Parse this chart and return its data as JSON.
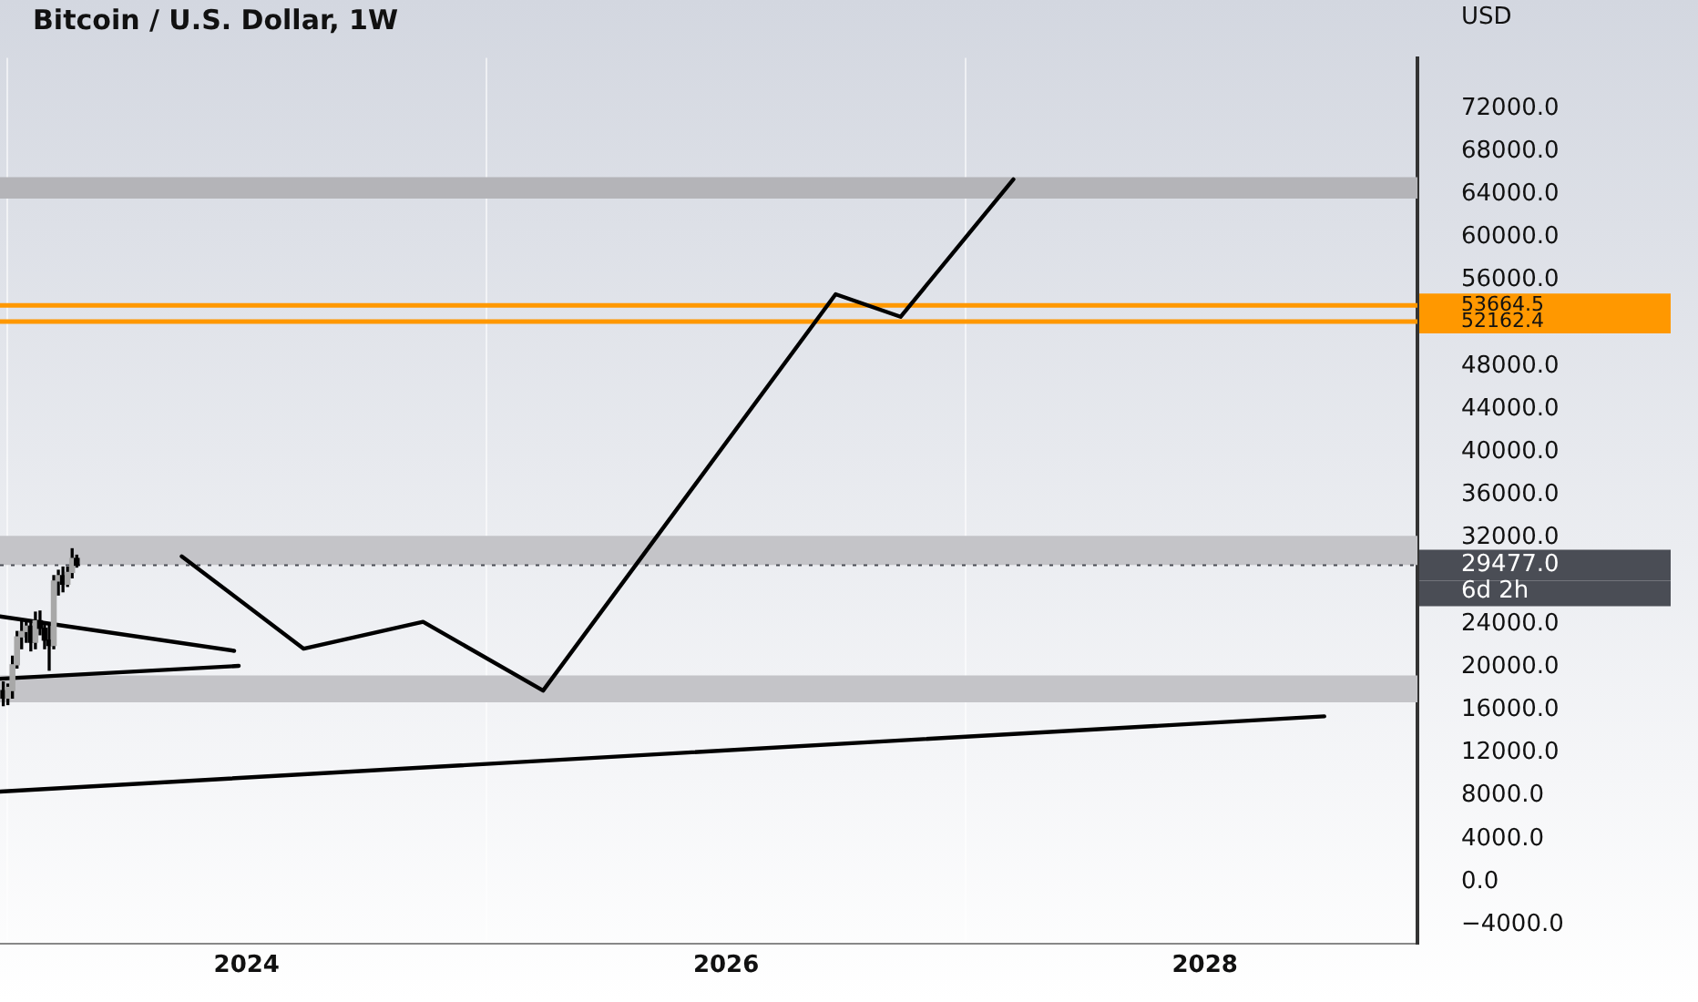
{
  "chart_data": {
    "type": "candlestick",
    "title": "Bitcoin / U.S. Dollar, 1W",
    "ylabel": "USD",
    "xlim": [
      "2022-12-21",
      "2028-11-20"
    ],
    "xticks": [
      {
        "value": "2024-01-01",
        "label": "2024"
      },
      {
        "value": "2026-01-01",
        "label": "2026"
      },
      {
        "value": "2028-01-01",
        "label": "2028"
      }
    ],
    "ylim": [
      -5800,
      76700
    ],
    "yticks": [
      {
        "value": 72000,
        "label": "72000.0"
      },
      {
        "value": 68000,
        "label": "68000.0"
      },
      {
        "value": 64000,
        "label": "64000.0"
      },
      {
        "value": 60000,
        "label": "60000.0"
      },
      {
        "value": 56000,
        "label": "56000.0"
      },
      {
        "value": 48000,
        "label": "48000.0"
      },
      {
        "value": 44000,
        "label": "44000.0"
      },
      {
        "value": 40000,
        "label": "40000.0"
      },
      {
        "value": 36000,
        "label": "36000.0"
      },
      {
        "value": 32000,
        "label": "32000.0"
      },
      {
        "value": 24000,
        "label": "24000.0"
      },
      {
        "value": 20000,
        "label": "20000.0"
      },
      {
        "value": 16000,
        "label": "16000.0"
      },
      {
        "value": 12000,
        "label": "12000.0"
      },
      {
        "value": 8000,
        "label": "8000.0"
      },
      {
        "value": 4000,
        "label": "4000.0"
      },
      {
        "value": 0,
        "label": "0.0"
      },
      {
        "value": -4000,
        "label": "−4000.0"
      }
    ],
    "grid": "x",
    "legend": false,
    "series": [
      {
        "type": "line",
        "color": "#000000",
        "x": [
          "2022-12-21",
          "2028-07-01"
        ],
        "values": [
          8400,
          15400
        ]
      },
      {
        "type": "line",
        "color": "#000000",
        "x": [
          "2022-12-21",
          "2023-12-13"
        ],
        "values": [
          24700,
          21500
        ]
      },
      {
        "type": "line",
        "color": "#000000",
        "x": [
          "2022-12-21",
          "2023-12-20"
        ],
        "values": [
          18900,
          20100
        ]
      },
      {
        "type": "line",
        "color": "#000000",
        "x": [
          "2023-09-24",
          "2024-03-28",
          "2024-09-26",
          "2025-03-28",
          "2026-06-17",
          "2026-09-24",
          "2027-03-15"
        ],
        "values": [
          30300,
          21700,
          24200,
          17800,
          54700,
          52600,
          65400
        ]
      },
      {
        "type": "candlestick",
        "color": "#000000",
        "colors": [
          "#000000",
          "#a8a8a8",
          "#a8a8a8",
          "#a8a8a8",
          "#a8a8a8",
          "#a8a8a8",
          "#000000",
          "#a8a8a8",
          "#000000",
          "#000000",
          "#000000",
          "#a8a8a8",
          "#a8a8a8",
          "#000000",
          "#a8a8a8",
          "#a8a8a8",
          "#000000"
        ],
        "x": [
          "2022-12-26",
          "2023-01-02",
          "2023-01-09",
          "2023-01-16",
          "2023-01-23",
          "2023-01-30",
          "2023-02-06",
          "2023-02-13",
          "2023-02-20",
          "2023-02-27",
          "2023-03-06",
          "2023-03-13",
          "2023-03-20",
          "2023-03-27",
          "2023-04-03",
          "2023-04-10",
          "2023-04-17"
        ],
        "ohlc": [
          [
            17800,
            18600,
            16400,
            17100
          ],
          [
            17100,
            18400,
            16500,
            18100
          ],
          [
            17800,
            21000,
            17100,
            20200
          ],
          [
            20200,
            23300,
            19900,
            22800
          ],
          [
            22800,
            24300,
            21700,
            23300
          ],
          [
            23300,
            24300,
            22300,
            23800
          ],
          [
            23800,
            24100,
            21500,
            22300
          ],
          [
            22300,
            25100,
            21700,
            24300
          ],
          [
            24300,
            25200,
            23000,
            23600
          ],
          [
            23600,
            24100,
            21700,
            22500
          ],
          [
            22500,
            24100,
            19700,
            22000
          ],
          [
            22000,
            28500,
            21700,
            28000
          ],
          [
            28000,
            29000,
            26700,
            28500
          ],
          [
            28500,
            29300,
            27000,
            27700
          ],
          [
            27700,
            29300,
            27500,
            28800
          ],
          [
            28800,
            31000,
            28300,
            30100
          ],
          [
            30100,
            30400,
            29300,
            29477
          ]
        ]
      }
    ],
    "bands": [
      {
        "axis": "y",
        "from": 63600,
        "to": 65600,
        "color": "#b4b4b8"
      },
      {
        "axis": "y",
        "from": 29500,
        "to": 32200,
        "color": "#c4c4c8"
      },
      {
        "axis": "y",
        "from": 16700,
        "to": 19200,
        "color": "#c4c4c8"
      }
    ],
    "ref_lines": [
      {
        "axis": "y",
        "value": 53664.5,
        "label": "53664.5",
        "color": "#ff9800"
      },
      {
        "axis": "y",
        "value": 52162.4,
        "label": "52162.4",
        "color": "#ff9800"
      },
      {
        "axis": "y",
        "value": 29477,
        "label": "29477.0",
        "color": "#4a4d55",
        "line_style": "dotted"
      }
    ],
    "annotations": [
      "6d 2h"
    ]
  }
}
